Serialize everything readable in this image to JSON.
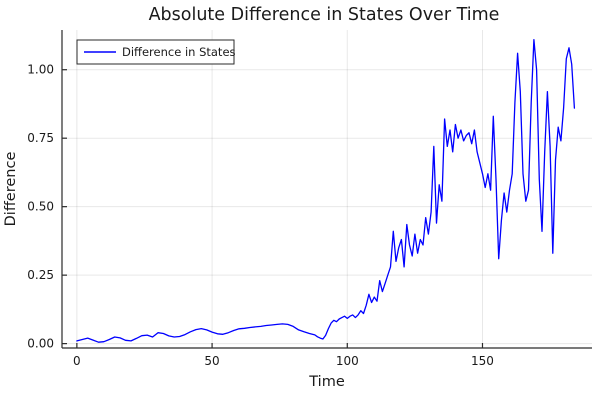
{
  "figure": {
    "title": "Absolute Difference in States Over Time",
    "background": "#ffffff",
    "text_color": "#1a1a1a",
    "axis_color": "#2a2a2a",
    "grid_color": "rgba(0,0,0,0.09)"
  },
  "legend": {
    "label": "Difference in States",
    "line_color": "#0000ff"
  },
  "chart_data": {
    "type": "line",
    "title": "Absolute Difference in States Over Time",
    "xlabel": "Time",
    "ylabel": "Difference",
    "xlim": [
      -5.5,
      190.5
    ],
    "ylim": [
      -0.016,
      1.145
    ],
    "xticks": [
      0,
      50,
      100,
      150
    ],
    "xtick_labels": [
      "0",
      "50",
      "100",
      "150"
    ],
    "yticks": [
      0.0,
      0.25,
      0.5,
      0.75,
      1.0
    ],
    "ytick_labels": [
      "0.00",
      "0.25",
      "0.50",
      "0.75",
      "1.00"
    ],
    "grid": true,
    "legend_position": "top-left",
    "series": [
      {
        "name": "Difference in States",
        "color": "#0000ff",
        "x": [
          0,
          2,
          4,
          6,
          8,
          10,
          12,
          14,
          16,
          18,
          20,
          22,
          24,
          26,
          28,
          30,
          32,
          34,
          36,
          38,
          40,
          42,
          44,
          46,
          48,
          50,
          52,
          54,
          56,
          58,
          60,
          62,
          64,
          66,
          68,
          70,
          72,
          74,
          76,
          78,
          80,
          82,
          84,
          86,
          88,
          89,
          90,
          91,
          92,
          93,
          94,
          95,
          96,
          97,
          98,
          99,
          100,
          101,
          102,
          103,
          104,
          105,
          106,
          107,
          108,
          109,
          110,
          111,
          112,
          113,
          114,
          115,
          116,
          117,
          118,
          119,
          120,
          121,
          122,
          123,
          124,
          125,
          126,
          127,
          128,
          129,
          130,
          131,
          132,
          133,
          134,
          135,
          136,
          137,
          138,
          139,
          140,
          141,
          142,
          143,
          144,
          145,
          146,
          147,
          148,
          149,
          150,
          151,
          152,
          153,
          154,
          155,
          156,
          157,
          158,
          159,
          160,
          161,
          162,
          163,
          164,
          165,
          166,
          167,
          168,
          169,
          170,
          171,
          172,
          173,
          174,
          175,
          176,
          177,
          178,
          179,
          180,
          181,
          182,
          183,
          184
        ],
        "y": [
          0.01,
          0.015,
          0.02,
          0.013,
          0.005,
          0.007,
          0.015,
          0.024,
          0.021,
          0.012,
          0.01,
          0.019,
          0.029,
          0.031,
          0.024,
          0.04,
          0.037,
          0.028,
          0.024,
          0.026,
          0.033,
          0.043,
          0.051,
          0.055,
          0.05,
          0.042,
          0.036,
          0.034,
          0.04,
          0.048,
          0.054,
          0.056,
          0.059,
          0.061,
          0.063,
          0.066,
          0.068,
          0.07,
          0.072,
          0.07,
          0.063,
          0.05,
          0.043,
          0.037,
          0.032,
          0.025,
          0.02,
          0.017,
          0.03,
          0.055,
          0.075,
          0.085,
          0.08,
          0.09,
          0.095,
          0.1,
          0.092,
          0.1,
          0.105,
          0.095,
          0.105,
          0.12,
          0.11,
          0.14,
          0.18,
          0.15,
          0.17,
          0.155,
          0.23,
          0.19,
          0.22,
          0.25,
          0.28,
          0.41,
          0.3,
          0.35,
          0.38,
          0.28,
          0.435,
          0.36,
          0.32,
          0.4,
          0.33,
          0.38,
          0.36,
          0.46,
          0.4,
          0.48,
          0.72,
          0.44,
          0.58,
          0.52,
          0.82,
          0.72,
          0.78,
          0.7,
          0.8,
          0.75,
          0.78,
          0.74,
          0.76,
          0.77,
          0.73,
          0.78,
          0.7,
          0.66,
          0.62,
          0.57,
          0.62,
          0.56,
          0.83,
          0.6,
          0.31,
          0.45,
          0.55,
          0.48,
          0.56,
          0.62,
          0.88,
          1.06,
          0.92,
          0.62,
          0.52,
          0.56,
          0.88,
          1.11,
          1.0,
          0.6,
          0.41,
          0.7,
          0.92,
          0.72,
          0.33,
          0.67,
          0.79,
          0.74,
          0.86,
          1.04,
          1.08,
          1.02,
          0.86
        ]
      }
    ]
  }
}
